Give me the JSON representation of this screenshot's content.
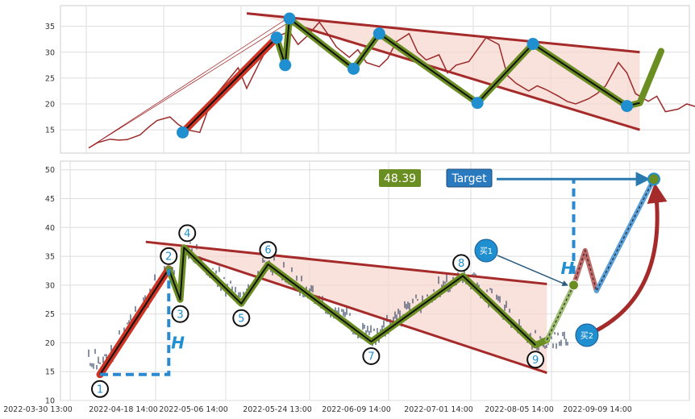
{
  "colors": {
    "price_line": "#9b2a2a",
    "channel": "#a52a2a",
    "channel_fill": "#f6d5cc",
    "impulse": "#cc3322",
    "wave_outer": "#6b8e23",
    "wave_inner": "#111111",
    "pivot": "#1f8fd0",
    "measure": "#2a8ad0",
    "candle": "#3a4a6a",
    "projection": "#8fb35a",
    "target_arrow": "#2a7ab0",
    "curve_arrow": "#a52a2a",
    "price_badge": "#6b8e23",
    "target_badge": "#2a7ac0"
  },
  "chart_data": [
    {
      "type": "line",
      "panel": "top",
      "ylim": [
        10.5,
        39
      ],
      "yticks": [
        15,
        20,
        25,
        30,
        35
      ],
      "grid": true,
      "series": [
        {
          "kind": "price",
          "x": [
            "2022-03-30",
            "2022-04-01",
            "2022-04-04",
            "2022-04-06",
            "2022-04-08",
            "2022-04-11",
            "2022-04-13",
            "2022-04-15",
            "2022-04-18",
            "2022-04-20",
            "2022-04-22",
            "2022-04-25",
            "2022-04-27",
            "2022-04-29",
            "2022-05-02",
            "2022-05-04",
            "2022-05-06",
            "2022-05-09",
            "2022-05-11",
            "2022-05-13",
            "2022-05-16",
            "2022-05-18",
            "2022-05-20",
            "2022-05-23",
            "2022-05-25",
            "2022-05-27",
            "2022-05-30",
            "2022-06-01",
            "2022-06-03",
            "2022-06-06",
            "2022-06-08",
            "2022-06-10",
            "2022-06-13",
            "2022-06-15",
            "2022-06-17",
            "2022-06-20",
            "2022-06-22",
            "2022-06-24",
            "2022-06-27",
            "2022-06-29",
            "2022-07-01",
            "2022-07-04",
            "2022-07-06",
            "2022-07-08",
            "2022-07-11",
            "2022-07-13",
            "2022-07-15",
            "2022-07-18",
            "2022-07-20",
            "2022-07-22",
            "2022-07-25",
            "2022-07-27",
            "2022-07-29",
            "2022-08-01",
            "2022-08-03",
            "2022-08-05",
            "2022-08-08",
            "2022-08-10",
            "2022-08-12",
            "2022-08-15",
            "2022-08-17",
            "2022-08-19",
            "2022-08-22",
            "2022-08-24"
          ],
          "y": [
            11.5,
            12.5,
            13.2,
            13.0,
            13.1,
            14.0,
            15.5,
            16.8,
            17.5,
            16.0,
            15.0,
            14.5,
            19.0,
            22.0,
            25.0,
            27.0,
            23.0,
            28.0,
            31.0,
            33.0,
            34.0,
            31.5,
            33.0,
            35.8,
            33.5,
            31.0,
            29.0,
            30.5,
            28.0,
            27.2,
            28.8,
            32.0,
            33.6,
            30.0,
            28.5,
            29.5,
            26.0,
            27.5,
            28.2,
            30.5,
            32.8,
            31.5,
            25.5,
            24.0,
            22.5,
            23.5,
            22.8,
            21.5,
            20.5,
            20.0,
            21.0,
            22.0,
            23.5,
            28.0,
            26.0,
            22.0,
            20.5,
            21.5,
            18.5,
            19.0,
            20.0,
            19.5,
            20.2,
            20.5
          ]
        }
      ],
      "pivots": [
        {
          "x": "2022-04-21",
          "y": 14.5
        },
        {
          "x": "2022-05-13",
          "y": 32.8
        },
        {
          "x": "2022-05-15",
          "y": 27.5
        },
        {
          "x": "2022-05-16",
          "y": 36.5
        },
        {
          "x": "2022-05-31",
          "y": 26.8
        },
        {
          "x": "2022-06-06",
          "y": 33.6
        },
        {
          "x": "2022-06-29",
          "y": 20.2
        },
        {
          "x": "2022-07-12",
          "y": 31.6
        },
        {
          "x": "2022-08-03",
          "y": 19.6
        }
      ],
      "wave_path": [
        {
          "x": "2022-05-13",
          "y": 32.8
        },
        {
          "x": "2022-05-15",
          "y": 27.5
        },
        {
          "x": "2022-05-16",
          "y": 36.5
        },
        {
          "x": "2022-05-31",
          "y": 26.8
        },
        {
          "x": "2022-06-06",
          "y": 33.6
        },
        {
          "x": "2022-06-29",
          "y": 20.2
        },
        {
          "x": "2022-07-12",
          "y": 31.6
        },
        {
          "x": "2022-08-03",
          "y": 19.6
        },
        {
          "x": "2022-08-06",
          "y": 20.2
        },
        {
          "x": "2022-08-11",
          "y": 30.2
        }
      ],
      "channel_upper": [
        {
          "x": "2022-05-06",
          "y": 37.5
        },
        {
          "x": "2022-08-06",
          "y": 30.0
        }
      ],
      "channel_lower": [
        {
          "x": "2022-05-16",
          "y": 35.6
        },
        {
          "x": "2022-08-06",
          "y": 15.0
        }
      ],
      "impulse": [
        {
          "x": "2022-04-21",
          "y": 14.5
        },
        {
          "x": "2022-05-13",
          "y": 32.8
        }
      ],
      "thin_arrow": [
        {
          "x": "2022-03-30",
          "y": 11.5
        },
        {
          "x": "2022-05-16",
          "y": 36.5
        }
      ]
    },
    {
      "type": "candlestick",
      "panel": "bottom",
      "ylim": [
        10,
        51.5
      ],
      "yticks": [
        10,
        15,
        20,
        25,
        30,
        35,
        40,
        45,
        50
      ],
      "x_tick_labels": [
        "2022-03-30 13:00",
        "2022-04-18 14:00",
        "2022-05-06 14:00",
        "2022-05-24 13:00",
        "2022-06-09 14:00",
        "2022-07-01 14:00",
        "2022-08-05 14:00",
        "2022-09-09 14:00"
      ],
      "grid": true,
      "waves": [
        {
          "label": "1",
          "x": "2022-04-18",
          "y": 14.5
        },
        {
          "label": "2",
          "x": "2022-05-06",
          "y": 32.8
        },
        {
          "label": "3",
          "x": "2022-05-09",
          "y": 27.5
        },
        {
          "label": "4",
          "x": "2022-05-10",
          "y": 36.5
        },
        {
          "label": "5",
          "x": "2022-05-25",
          "y": 26.8
        },
        {
          "label": "6",
          "x": "2022-06-01",
          "y": 33.6
        },
        {
          "label": "7",
          "x": "2022-06-28",
          "y": 20.2
        },
        {
          "label": "8",
          "x": "2022-07-22",
          "y": 31.6
        },
        {
          "label": "9",
          "x": "2022-08-10",
          "y": 19.6
        }
      ],
      "projection": [
        {
          "x": "2022-08-10",
          "y": 19.6
        },
        {
          "x": "2022-08-13",
          "y": 20.5
        },
        {
          "x": "2022-08-20",
          "y": 30.0
        },
        {
          "x": "2022-08-23",
          "y": 36.0
        },
        {
          "x": "2022-08-26",
          "y": 29.0
        },
        {
          "x": "2022-09-10",
          "y": 48.39
        }
      ],
      "measured_move_h": 18.3,
      "current_price": "48.39",
      "target_label": "Target",
      "buy_points": [
        {
          "label": "买1",
          "x": "2022-08-20",
          "y": 30.0
        },
        {
          "label": "买2",
          "x": "2022-08-26",
          "y": 29.0
        }
      ],
      "h_label": "H",
      "channel_upper": [
        {
          "x": "2022-04-30",
          "y": 37.5
        },
        {
          "x": "2022-08-13",
          "y": 30.2
        }
      ],
      "channel_lower": [
        {
          "x": "2022-05-10",
          "y": 35.6
        },
        {
          "x": "2022-08-13",
          "y": 14.8
        }
      ]
    }
  ]
}
